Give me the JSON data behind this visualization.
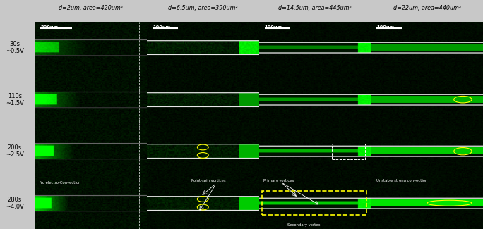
{
  "col_titles": [
    "d=2um, area=420um²",
    "d=6.5um, area=390um²",
    "d=14.5um, area=445um²",
    "d=22um, area=440um²"
  ],
  "row_labels": [
    [
      "30s",
      "~0.5V"
    ],
    [
      "110s",
      "~1.5V"
    ],
    [
      "200s",
      "~2.5V"
    ],
    [
      "280s",
      "~4.0V"
    ]
  ],
  "scale_bars": [
    "200um",
    "100um",
    "100um",
    "100um"
  ],
  "annotations": {
    "row3_col0": "No electro-Convection",
    "row3_col1": "Point-spin vortices",
    "row3_col2_top": "Primary vortices",
    "row3_col2_bot": "Secondary vortex",
    "row3_col3": "Unstable strong convection"
  },
  "fig_bg": "#c8c8c8",
  "img_bg": "#0d0d0d",
  "ellipse_color": "#ffff00",
  "dashed_box_color": "#ffff00",
  "white": "#ffffff",
  "label_color": "#000000"
}
